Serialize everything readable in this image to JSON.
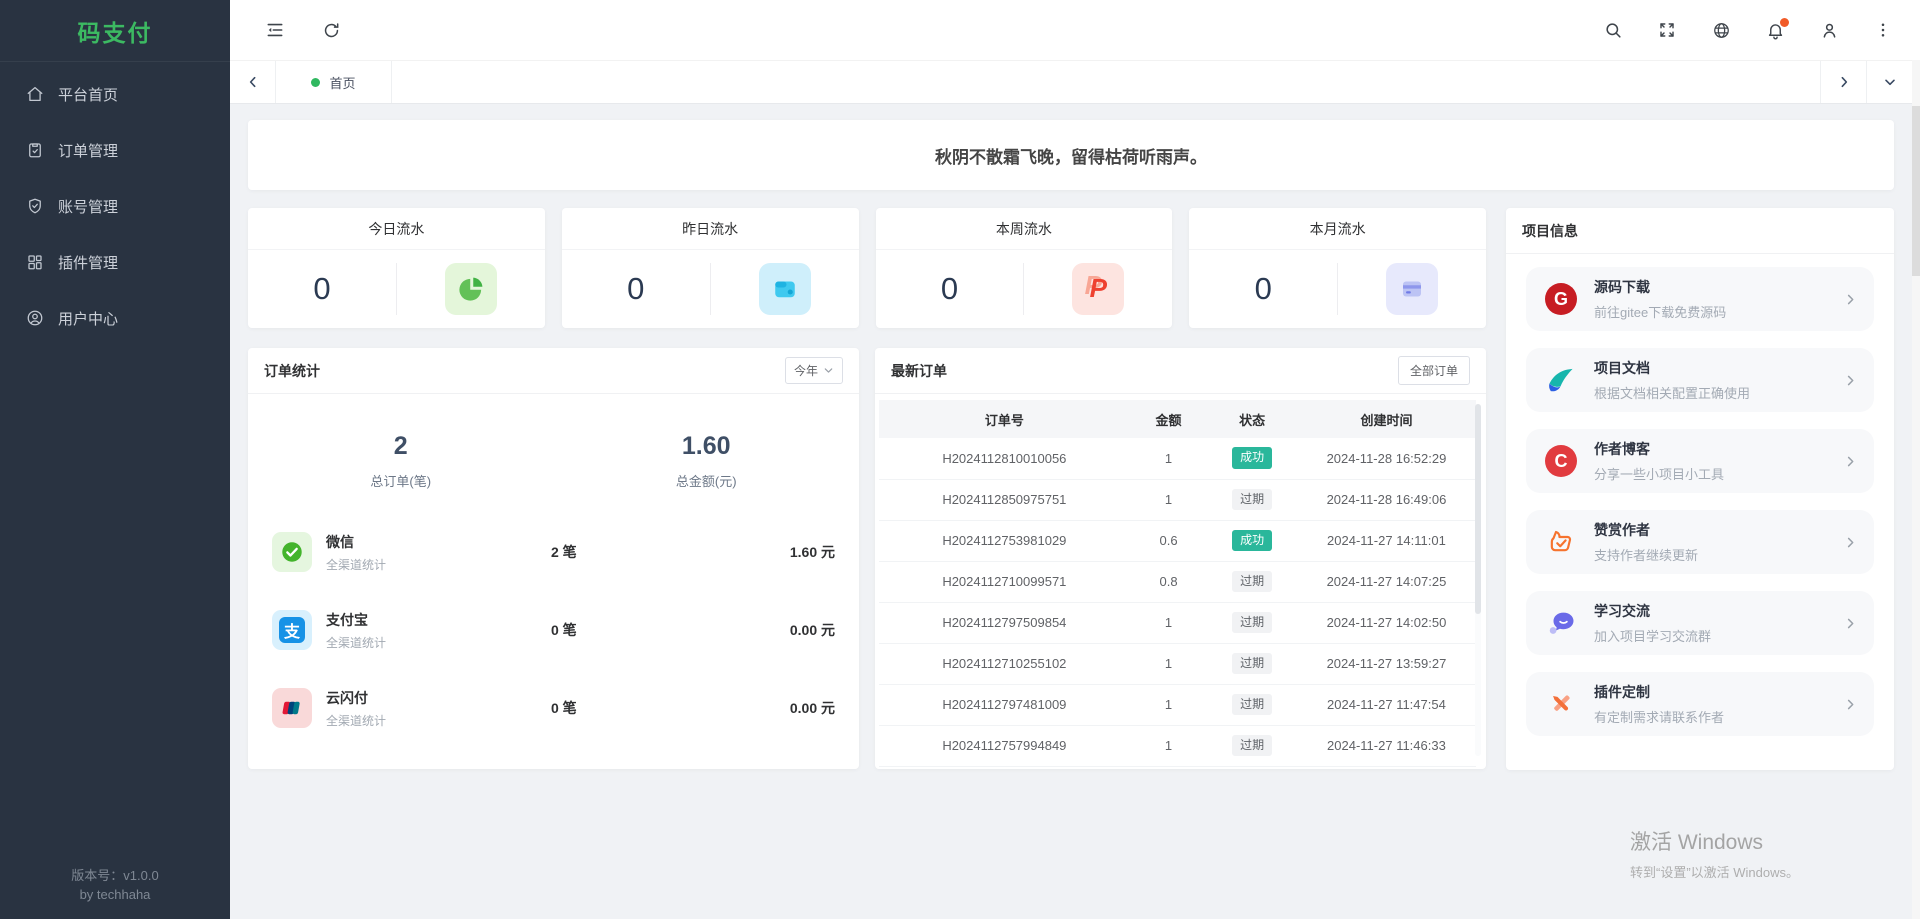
{
  "colors": {
    "accent_green": "#3cba62",
    "sidebar_bg": "#293341",
    "success_badge": "#2ab79b",
    "notify_dot": "#f15b28",
    "tab_dot_green": "#30b860"
  },
  "sidebar": {
    "logo": "码支付",
    "items": [
      {
        "label": "平台首页",
        "icon": "home-icon"
      },
      {
        "label": "订单管理",
        "icon": "order-icon"
      },
      {
        "label": "账号管理",
        "icon": "account-icon"
      },
      {
        "label": "插件管理",
        "icon": "plugin-icon"
      },
      {
        "label": "用户中心",
        "icon": "user-center-icon"
      }
    ],
    "version_line1": "版本号：v1.0.0",
    "version_line2": "by techhaha"
  },
  "tabbar": {
    "active_tab": "首页"
  },
  "banner": {
    "text": "秋阴不散霜飞晚，留得枯荷听雨声。"
  },
  "stats": {
    "cards": [
      {
        "title": "今日流水",
        "value": "0",
        "icon": "pie-chart-icon"
      },
      {
        "title": "昨日流水",
        "value": "0",
        "icon": "wallet-icon"
      },
      {
        "title": "本周流水",
        "value": "0",
        "icon": "paypal-icon"
      },
      {
        "title": "本月流水",
        "value": "0",
        "icon": "bank-card-icon"
      }
    ]
  },
  "order_stats": {
    "title": "订单统计",
    "range_select": "今年",
    "totals": [
      {
        "value": "2",
        "label": "总订单(笔)"
      },
      {
        "value": "1.60",
        "label": "总金额(元)"
      }
    ],
    "channels": [
      {
        "name": "微信",
        "desc": "全渠道统计",
        "count": "2 笔",
        "amount": "1.60 元",
        "icon": "wechat-icon"
      },
      {
        "name": "支付宝",
        "desc": "全渠道统计",
        "count": "0 笔",
        "amount": "0.00 元",
        "icon": "alipay-icon"
      },
      {
        "name": "云闪付",
        "desc": "全渠道统计",
        "count": "0 笔",
        "amount": "0.00 元",
        "icon": "unionpay-icon"
      }
    ]
  },
  "latest_orders": {
    "title": "最新订单",
    "all_orders_button": "全部订单",
    "columns": [
      "订单号",
      "金额",
      "状态",
      "创建时间"
    ],
    "rows": [
      {
        "order_no": "H2024112810010056",
        "amount": "1",
        "status": "成功",
        "status_type": "success",
        "created_at": "2024-11-28 16:52:29"
      },
      {
        "order_no": "H2024112850975751",
        "amount": "1",
        "status": "过期",
        "status_type": "expired",
        "created_at": "2024-11-28 16:49:06"
      },
      {
        "order_no": "H2024112753981029",
        "amount": "0.6",
        "status": "成功",
        "status_type": "success",
        "created_at": "2024-11-27 14:11:01"
      },
      {
        "order_no": "H2024112710099571",
        "amount": "0.8",
        "status": "过期",
        "status_type": "expired",
        "created_at": "2024-11-27 14:07:25"
      },
      {
        "order_no": "H2024112797509854",
        "amount": "1",
        "status": "过期",
        "status_type": "expired",
        "created_at": "2024-11-27 14:02:50"
      },
      {
        "order_no": "H2024112710255102",
        "amount": "1",
        "status": "过期",
        "status_type": "expired",
        "created_at": "2024-11-27 13:59:27"
      },
      {
        "order_no": "H2024112797481009",
        "amount": "1",
        "status": "过期",
        "status_type": "expired",
        "created_at": "2024-11-27 11:47:54"
      },
      {
        "order_no": "H2024112757994849",
        "amount": "1",
        "status": "过期",
        "status_type": "expired",
        "created_at": "2024-11-27 11:46:33"
      }
    ]
  },
  "project_info": {
    "title": "项目信息",
    "items": [
      {
        "title": "源码下载",
        "desc": "前往gitee下载免费源码",
        "icon": "gitee-icon"
      },
      {
        "title": "项目文档",
        "desc": "根据文档相关配置正确使用",
        "icon": "docs-icon"
      },
      {
        "title": "作者博客",
        "desc": "分享一些小项目小工具",
        "icon": "csdn-icon"
      },
      {
        "title": "赞赏作者",
        "desc": "支持作者继续更新",
        "icon": "reward-icon"
      },
      {
        "title": "学习交流",
        "desc": "加入项目学习交流群",
        "icon": "chat-icon"
      },
      {
        "title": "插件定制",
        "desc": "有定制需求请联系作者",
        "icon": "customize-icon"
      }
    ]
  },
  "watermark": {
    "line1": "激活 Windows",
    "line2": "转到“设置”以激活 Windows。"
  }
}
